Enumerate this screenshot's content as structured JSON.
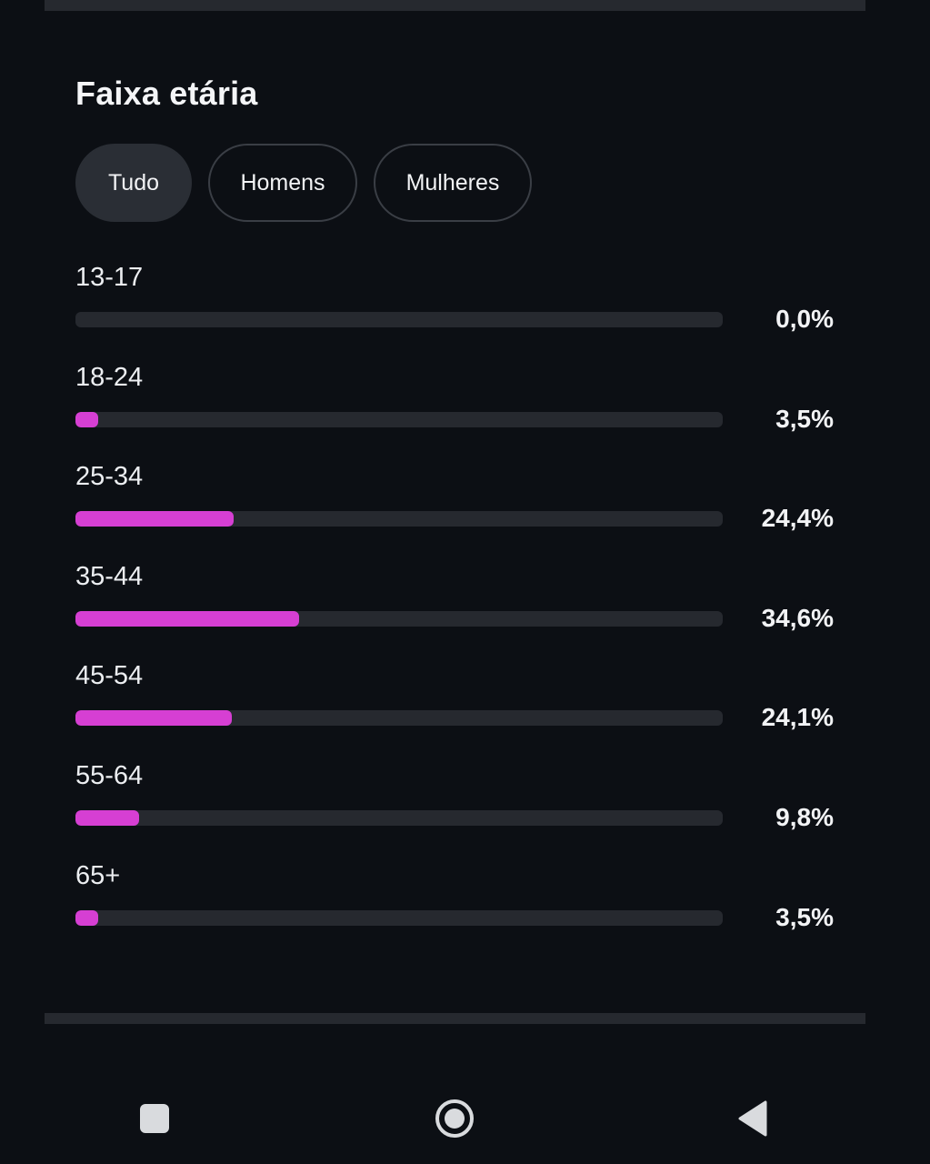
{
  "section": {
    "title": "Faixa etária"
  },
  "filters": [
    {
      "label": "Tudo",
      "selected": true
    },
    {
      "label": "Homens",
      "selected": false
    },
    {
      "label": "Mulheres",
      "selected": false
    }
  ],
  "age_groups": [
    {
      "label": "13-17",
      "value": 0.0,
      "value_text": "0,0%"
    },
    {
      "label": "18-24",
      "value": 3.5,
      "value_text": "3,5%"
    },
    {
      "label": "25-34",
      "value": 24.4,
      "value_text": "24,4%"
    },
    {
      "label": "35-44",
      "value": 34.6,
      "value_text": "34,6%"
    },
    {
      "label": "45-54",
      "value": 24.1,
      "value_text": "24,1%"
    },
    {
      "label": "55-64",
      "value": 9.8,
      "value_text": "9,8%"
    },
    {
      "label": "65+",
      "value": 3.5,
      "value_text": "3,5%"
    }
  ],
  "colors": {
    "background": "#0c0f14",
    "bar_fill": "#d63fd3",
    "bar_track": "#26292f",
    "chip_active": "#2a2e35"
  },
  "navbar": {
    "icons": [
      "recents-icon",
      "home-icon",
      "back-icon"
    ]
  }
}
